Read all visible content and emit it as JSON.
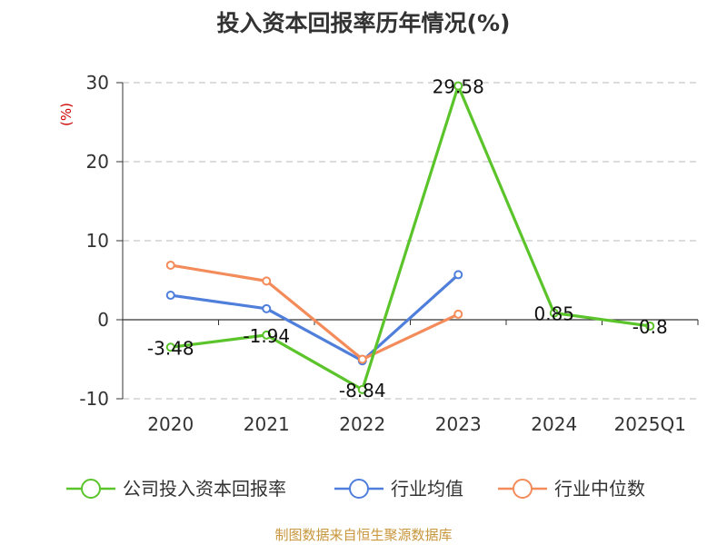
{
  "source_note": "制图数据来自恒生聚源数据库",
  "chart_data": {
    "type": "line",
    "title": "投入资本回报率历年情况(%)",
    "ylabel": "(%)",
    "xlabel": "",
    "categories": [
      "2020",
      "2021",
      "2022",
      "2023",
      "2024",
      "2025Q1"
    ],
    "ylim": [
      -10,
      30
    ],
    "yticks": [
      -10,
      0,
      10,
      20,
      30
    ],
    "grid": true,
    "legend_position": "bottom",
    "series": [
      {
        "name": "公司投入资本回报率",
        "color": "#5ac42a",
        "values": [
          -3.48,
          -1.94,
          -8.84,
          29.58,
          0.85,
          -0.8
        ],
        "labels": [
          "-3.48",
          "-1.94",
          "-8.84",
          "29.58",
          "0.85",
          "-0.8"
        ]
      },
      {
        "name": "行业均值",
        "color": "#4f7fdb",
        "values": [
          3.1,
          1.4,
          -5.2,
          5.7,
          null,
          null
        ]
      },
      {
        "name": "行业中位数",
        "color": "#f38b5a",
        "values": [
          6.9,
          4.9,
          -5.0,
          0.7,
          null,
          null
        ]
      }
    ]
  }
}
